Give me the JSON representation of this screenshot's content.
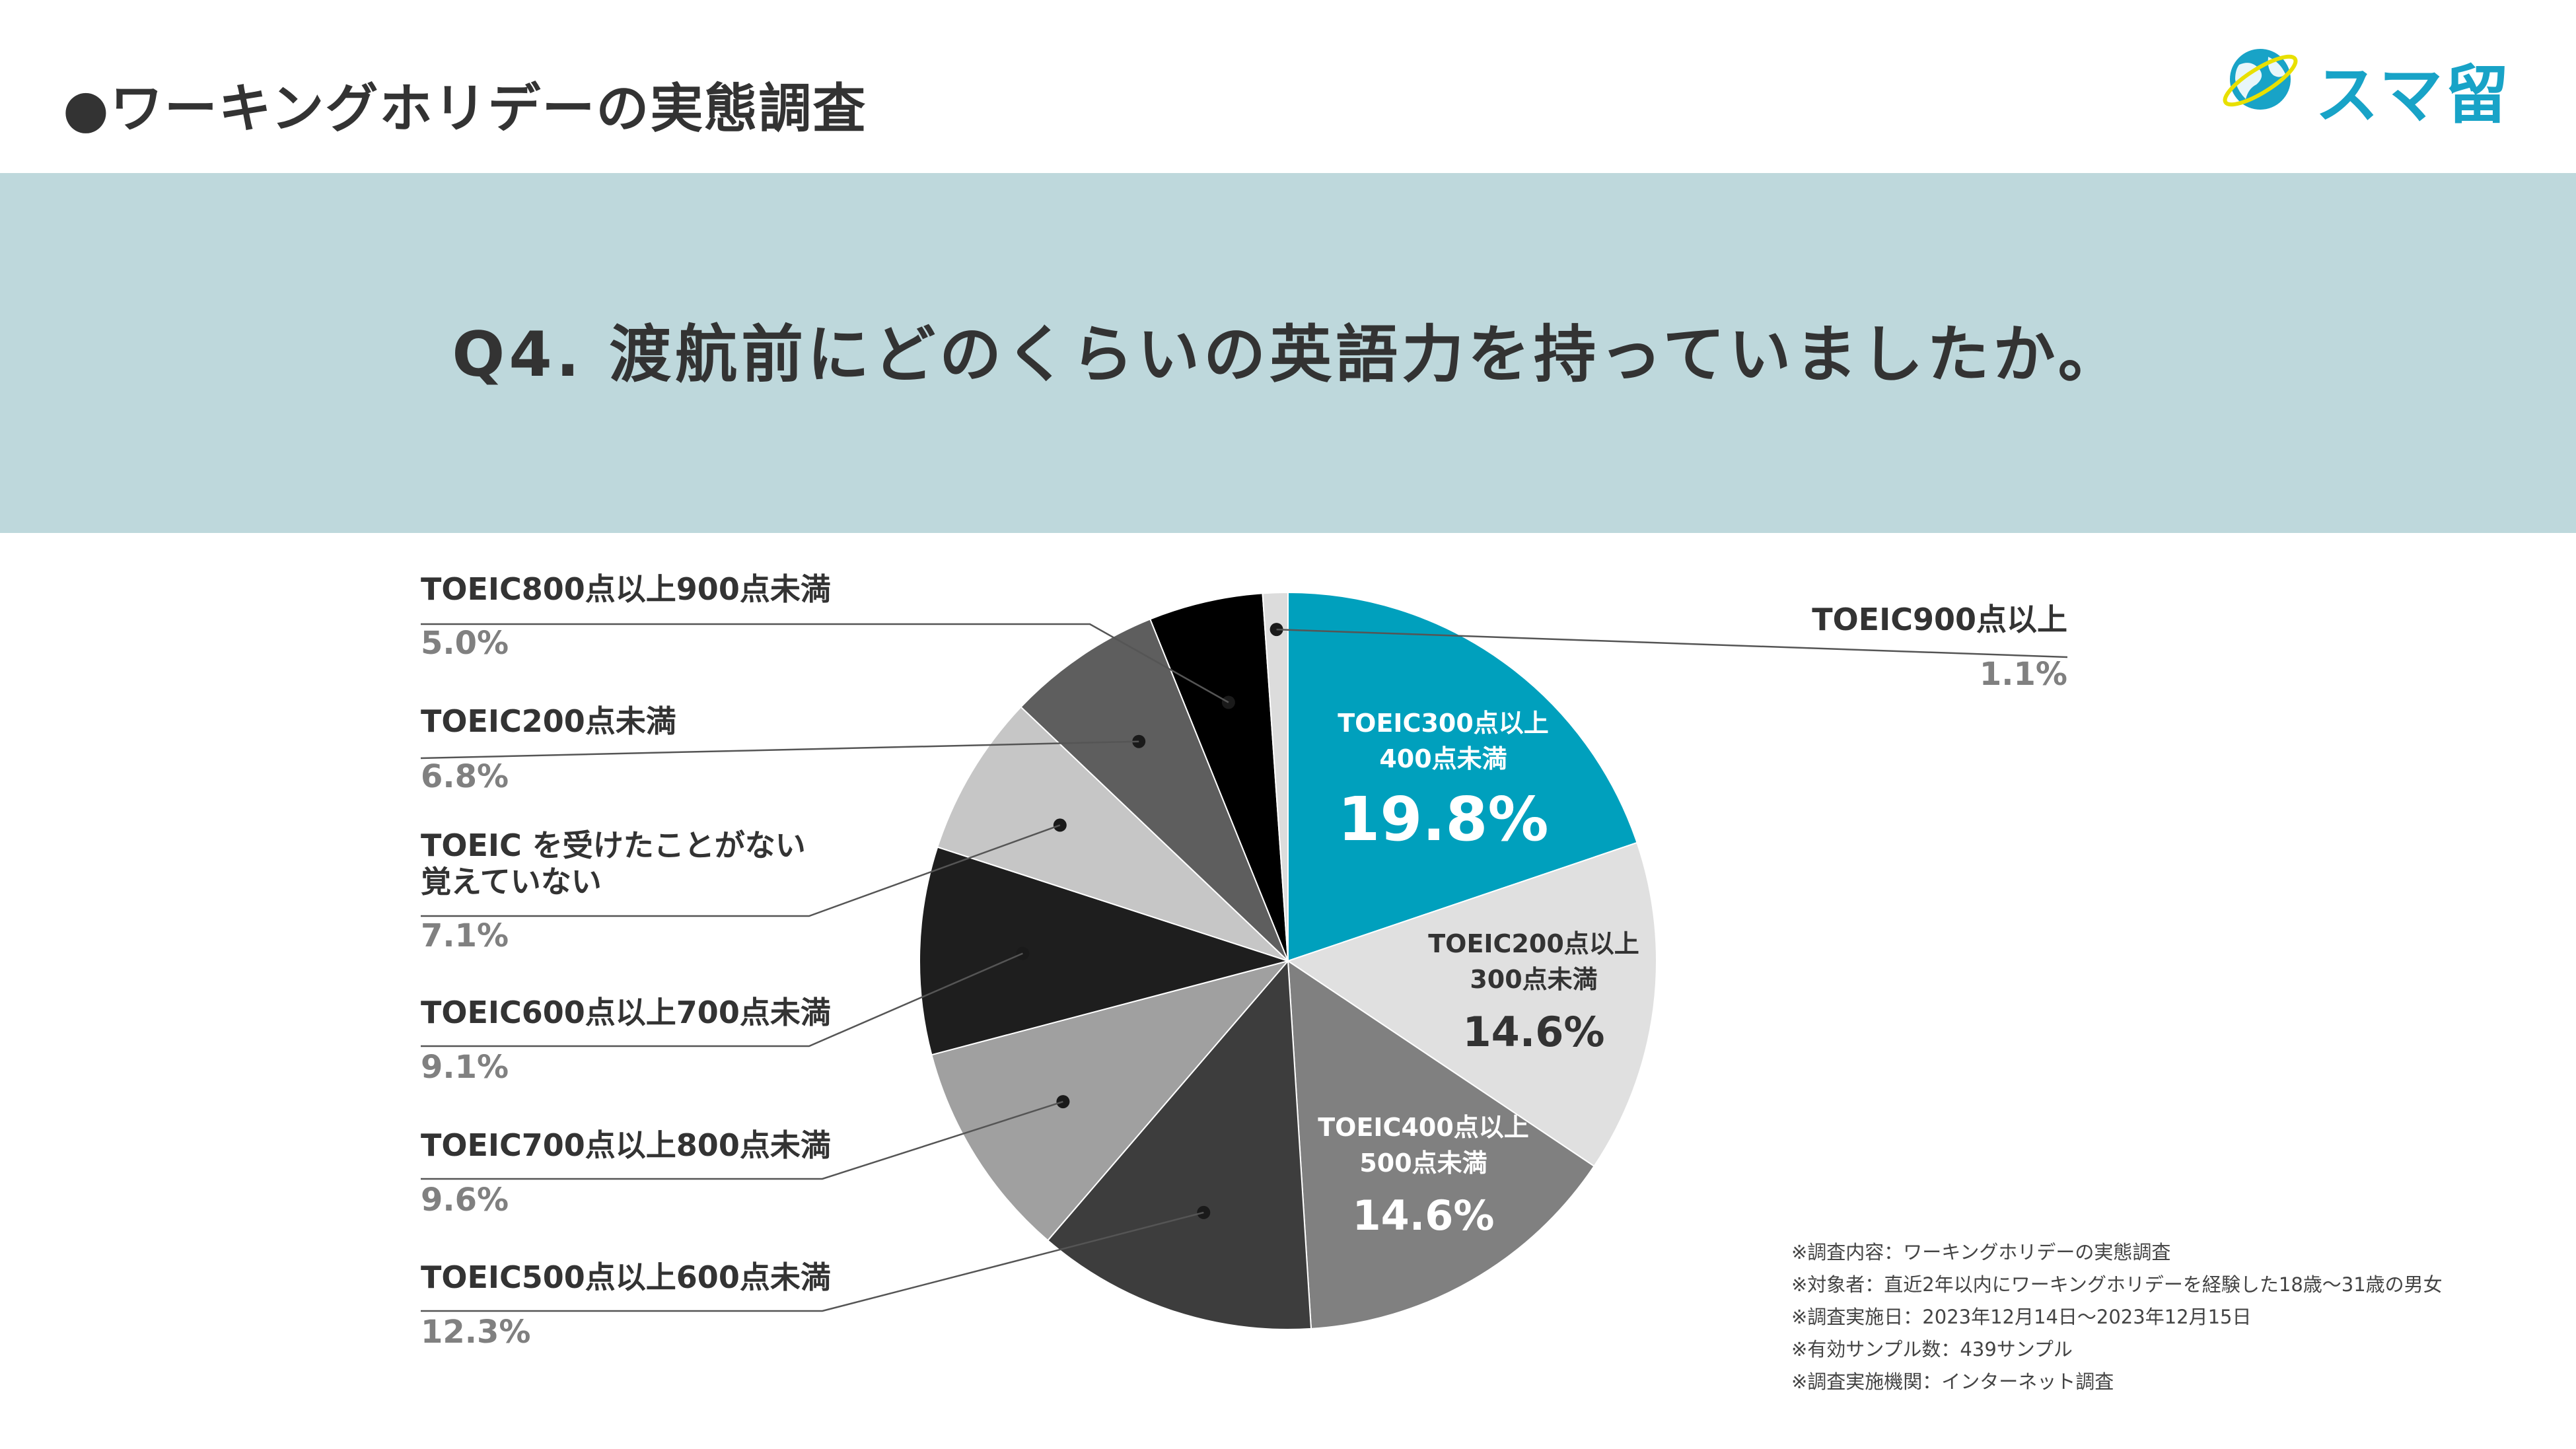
{
  "header": {
    "title": "●ワーキングホリデーの実態調査"
  },
  "logo": {
    "text": "スマ留"
  },
  "banner": {
    "question": "Q4. 渡航前にどのくらいの英語力を持っていましたか。"
  },
  "colors": {
    "accent": "#00a0bd",
    "banner": "#bed8dc",
    "logo": "#18a3c7"
  },
  "chart_data": {
    "type": "pie",
    "title": "",
    "start": "12 o'clock",
    "direction": "clockwise",
    "slices": [
      {
        "name": "TOEIC300点以上400点未満",
        "inside_lines": [
          "TOEIC300点以上",
          "400点未満"
        ],
        "value": 19.8,
        "label": "19.8%",
        "color": "#00a0bd",
        "label_style": "inside"
      },
      {
        "name": "TOEIC200点以上300点未満",
        "inside_lines": [
          "TOEIC200点以上",
          "300点未満"
        ],
        "value": 14.6,
        "label": "14.6%",
        "color": "#e0e0e0",
        "label_style": "inside"
      },
      {
        "name": "TOEIC400点以上500点未満",
        "inside_lines": [
          "TOEIC400点以上",
          "500点未満"
        ],
        "value": 14.6,
        "label": "14.6%",
        "color": "#808080",
        "label_style": "inside"
      },
      {
        "name": "TOEIC500点以上600点未満",
        "lines": [
          "TOEIC500点以上600点未満"
        ],
        "value": 12.3,
        "label": "12.3%",
        "color": "#3d3d3d",
        "label_style": "callout-left"
      },
      {
        "name": "TOEIC700点以上800点未満",
        "lines": [
          "TOEIC700点以上800点未満"
        ],
        "value": 9.6,
        "label": "9.6%",
        "color": "#a0a0a0",
        "label_style": "callout-left"
      },
      {
        "name": "TOEIC600点以上700点未満",
        "lines": [
          "TOEIC600点以上700点未満"
        ],
        "value": 9.1,
        "label": "9.1%",
        "color": "#1e1e1e",
        "label_style": "callout-left"
      },
      {
        "name": "TOEIC を受けたことがない覚えていない",
        "lines": [
          "TOEIC を受けたことがない",
          "覚えていない"
        ],
        "value": 7.1,
        "label": "7.1%",
        "color": "#c6c6c6",
        "label_style": "callout-left"
      },
      {
        "name": "TOEIC200点未満",
        "lines": [
          "TOEIC200点未満"
        ],
        "value": 6.8,
        "label": "6.8%",
        "color": "#5e5e5e",
        "label_style": "callout-left"
      },
      {
        "name": "TOEIC800点以上900点未満",
        "lines": [
          "TOEIC800点以上900点未満"
        ],
        "value": 5.0,
        "label": "5.0%",
        "color": "#000000",
        "label_style": "callout-left"
      },
      {
        "name": "TOEIC900点以上",
        "lines": [
          "TOEIC900点以上"
        ],
        "value": 1.1,
        "label": "1.1%",
        "color": "#dcdcdc",
        "label_style": "callout-right"
      }
    ]
  },
  "notes": [
    "※調査内容：ワーキングホリデーの実態調査",
    "※対象者：直近2年以内にワーキングホリデーを経験した18歳〜31歳の男女",
    "※調査実施日：2023年12月14日〜2023年12月15日",
    "※有効サンプル数：439サンプル",
    "※調査実施機関：インターネット調査"
  ]
}
